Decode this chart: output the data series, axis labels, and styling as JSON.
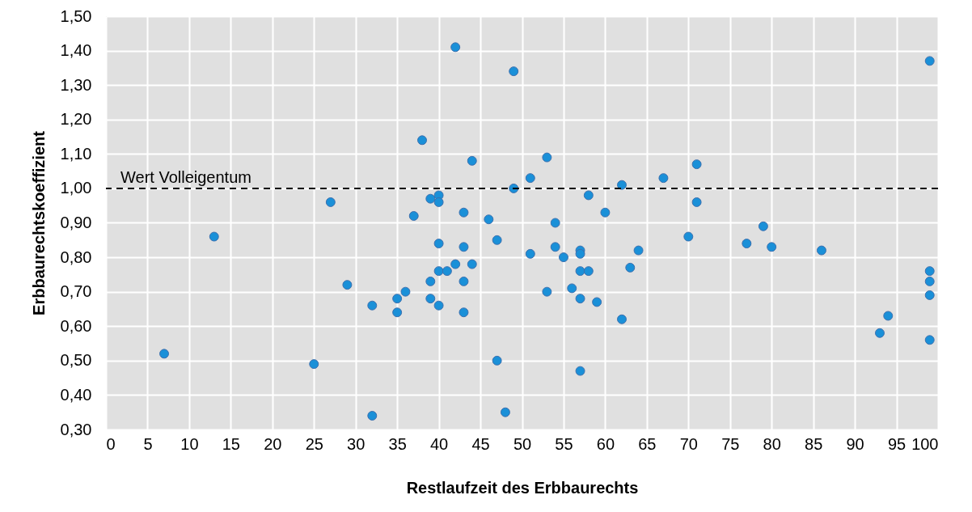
{
  "chart_data": {
    "type": "scatter",
    "xlabel": "Restlaufzeit des Erbbaurechts",
    "ylabel": "Erbbaurechtskoeffizient",
    "xlim": [
      0,
      100
    ],
    "xticks": [
      0,
      5,
      10,
      15,
      20,
      25,
      30,
      35,
      40,
      45,
      50,
      55,
      60,
      65,
      70,
      75,
      80,
      85,
      90,
      95,
      100
    ],
    "ylim": [
      0.3,
      1.5
    ],
    "yticks": [
      {
        "value": 0.3,
        "label": "0,30"
      },
      {
        "value": 0.4,
        "label": "0,40"
      },
      {
        "value": 0.5,
        "label": "0,50"
      },
      {
        "value": 0.6,
        "label": "0,60"
      },
      {
        "value": 0.7,
        "label": "0,70"
      },
      {
        "value": 0.8,
        "label": "0,80"
      },
      {
        "value": 0.9,
        "label": "0,90"
      },
      {
        "value": 1.0,
        "label": "1,00"
      },
      {
        "value": 1.1,
        "label": "1,10"
      },
      {
        "value": 1.2,
        "label": "1,20"
      },
      {
        "value": 1.3,
        "label": "1,30"
      },
      {
        "value": 1.4,
        "label": "1,40"
      },
      {
        "value": 1.5,
        "label": "1,50"
      }
    ],
    "grid": true,
    "marker": "circle",
    "ref_lines": [
      {
        "axis": "y",
        "value": 1.0,
        "label": "Wert Volleigentum",
        "color": "#000000",
        "line_style": "dashed"
      }
    ],
    "series": [
      {
        "color": "#1a90d8",
        "x": [
          7,
          13,
          25,
          27,
          29,
          32,
          32,
          35,
          35,
          36,
          37,
          38,
          39,
          39,
          39,
          40,
          40,
          40,
          40,
          40,
          41,
          42,
          42,
          43,
          43,
          43,
          43,
          44,
          44,
          46,
          47,
          47,
          48,
          49,
          49,
          51,
          51,
          53,
          53,
          54,
          54,
          55,
          56,
          57,
          57,
          57,
          57,
          57,
          58,
          58,
          59,
          60,
          62,
          62,
          63,
          64,
          67,
          70,
          71,
          71,
          77,
          79,
          80,
          86,
          93,
          94,
          99,
          99,
          99,
          99,
          99
        ],
        "values": [
          0.52,
          0.86,
          0.49,
          0.96,
          0.72,
          0.66,
          0.34,
          0.68,
          0.64,
          0.7,
          0.92,
          1.14,
          0.97,
          0.73,
          0.68,
          0.98,
          0.96,
          0.84,
          0.76,
          0.66,
          0.76,
          1.41,
          0.78,
          0.93,
          0.83,
          0.73,
          0.64,
          1.08,
          0.78,
          0.91,
          0.85,
          0.5,
          0.35,
          1.34,
          1.0,
          1.03,
          0.81,
          1.09,
          0.7,
          0.9,
          0.83,
          0.8,
          0.71,
          0.82,
          0.81,
          0.76,
          0.68,
          0.47,
          0.98,
          0.76,
          0.67,
          0.93,
          1.01,
          0.62,
          0.77,
          0.82,
          1.03,
          0.86,
          1.07,
          0.96,
          0.84,
          0.89,
          0.83,
          0.82,
          0.58,
          0.63,
          1.37,
          0.76,
          0.73,
          0.69,
          0.56
        ]
      }
    ]
  }
}
